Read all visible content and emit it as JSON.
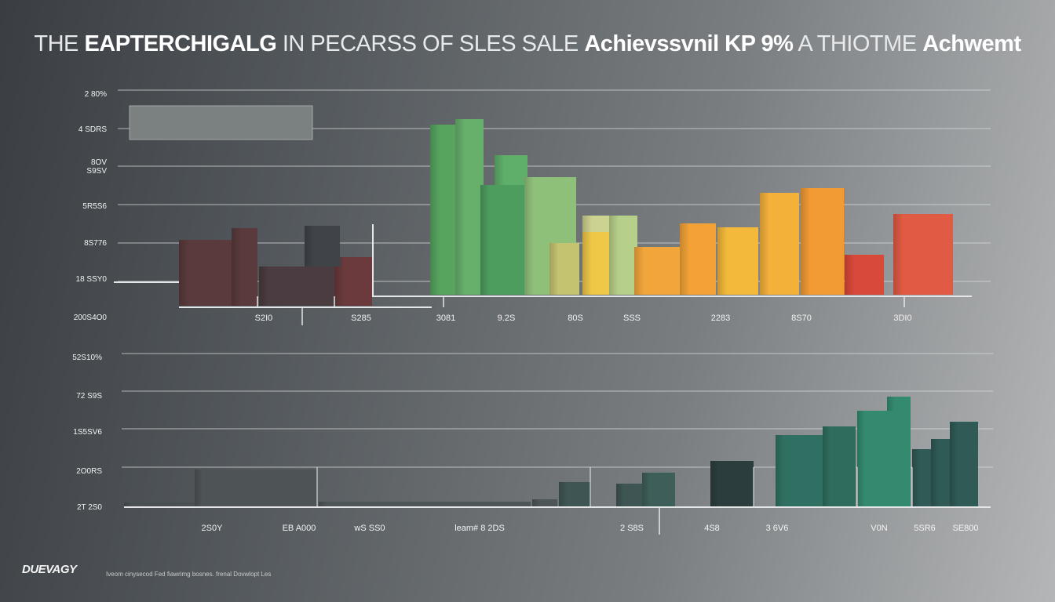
{
  "title": {
    "light1": "THE ",
    "bold1": "EAPTERCHIGALG",
    "light2": " IN PECARSS OF SLES SALE ",
    "bold2": "Achievssvnil  KP 9%",
    "light3": "  A THIOTME ",
    "bold3": "Achwemt"
  },
  "footer": {
    "logo": "DUEVAGY",
    "note": "Iveom cinysecod  Fed fiawrimg bosnes.  frenal  Dovwlopt Les"
  },
  "colors": {
    "gridline": "#d9dcde",
    "axis": "#e4e6e7",
    "tick_label": "#f2f3f3"
  },
  "chart_data": [
    {
      "type": "bar",
      "panel": "top",
      "y_tick_labels": [
        "2 80%",
        "4 SDRS",
        "8OV\nS9SV",
        "5R5S6",
        "8S776",
        "18 SSY0",
        "200S4O0"
      ],
      "x_tick_labels": [
        "S2I0",
        "S285",
        "3081",
        "9.2S",
        "80S",
        "SSS",
        "2283",
        "8S70",
        "3DI0"
      ],
      "legend": "none",
      "grid": true,
      "colors": [
        "#5a3a3c",
        "#4a3c40",
        "#6a3a3c",
        "#404448",
        "#57a45f",
        "#66b06c",
        "#4d9d5f",
        "#5fae6a",
        "#8fc07a",
        "#c4c470",
        "#b7d089",
        "#f0c848",
        "#ccd290",
        "#f1a53a",
        "#f3a236",
        "#f2b93a",
        "#f4b13a",
        "#f29a34",
        "#d9493a",
        "#e05a44"
      ]
    },
    {
      "type": "bar",
      "panel": "bottom",
      "y_tick_labels": [
        "52S10%",
        "72 S9S",
        "1S5SV6",
        "2O0RS",
        "2T 2S0"
      ],
      "x_tick_labels": [
        "2S0Y",
        "EB A000",
        "wS SS0",
        "leam# 8 2DS",
        "2 S8S",
        "4S8",
        "3 6V6",
        "V0N",
        "5SR6",
        "SE800"
      ],
      "legend": "none",
      "grid": true,
      "colors": [
        "#4a5052",
        "#4e5456",
        "#4d5557",
        "#3e5553",
        "#3e5e59",
        "#2c3d3e",
        "#2f7062",
        "#2f6c5e",
        "#348a6e",
        "#2f5a56"
      ]
    }
  ]
}
